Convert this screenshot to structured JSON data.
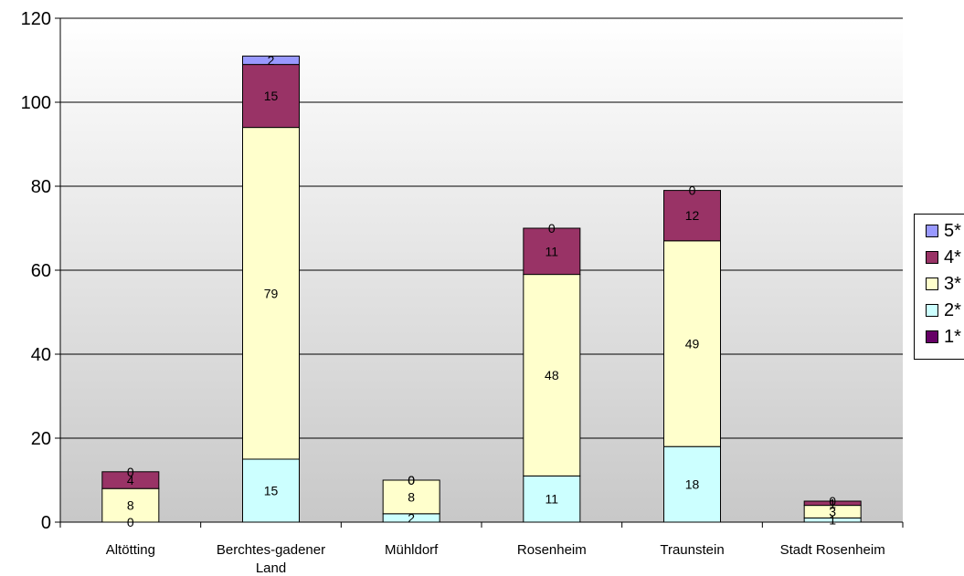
{
  "chart_data": {
    "type": "bar",
    "stacked": true,
    "categories": [
      "Altötting",
      "Berchtes-gadener Land",
      "Mühldorf",
      "Rosenheim",
      "Traunstein",
      "Stadt Rosenheim"
    ],
    "category_label_lines": [
      [
        "Altötting"
      ],
      [
        "Berchtes-gadener",
        "Land"
      ],
      [
        "Mühldorf"
      ],
      [
        "Rosenheim"
      ],
      [
        "Traunstein"
      ],
      [
        "Stadt Rosenheim"
      ]
    ],
    "series": [
      {
        "name": "1*",
        "color": "#660066",
        "values": [
          0,
          0,
          0,
          0,
          0,
          0
        ]
      },
      {
        "name": "2*",
        "color": "#ccffff",
        "values": [
          0,
          15,
          2,
          11,
          18,
          1
        ]
      },
      {
        "name": "3*",
        "color": "#ffffcc",
        "values": [
          8,
          79,
          8,
          48,
          49,
          3
        ]
      },
      {
        "name": "4*",
        "color": "#993366",
        "values": [
          4,
          15,
          0,
          11,
          12,
          1
        ]
      },
      {
        "name": "5*",
        "color": "#9999ff",
        "values": [
          0,
          2,
          0,
          0,
          0,
          0
        ]
      }
    ],
    "data_labels": [
      [
        "",
        "",
        "",
        "",
        "",
        ""
      ],
      [
        "0",
        "15",
        "2",
        "11",
        "18",
        "1"
      ],
      [
        "8",
        "79",
        "8",
        "48",
        "49",
        "3"
      ],
      [
        "4",
        "15",
        "0",
        "11",
        "12",
        "1"
      ],
      [
        "0",
        "2",
        "0",
        "0",
        "0",
        "0"
      ]
    ],
    "y_ticks": [
      0,
      20,
      40,
      60,
      80,
      100,
      120
    ],
    "ylim": [
      0,
      120
    ],
    "grid": true,
    "plot_background": "#c0c0c0",
    "legend_position": "right",
    "legend_order": [
      "5*",
      "4*",
      "3*",
      "2*",
      "1*"
    ]
  }
}
